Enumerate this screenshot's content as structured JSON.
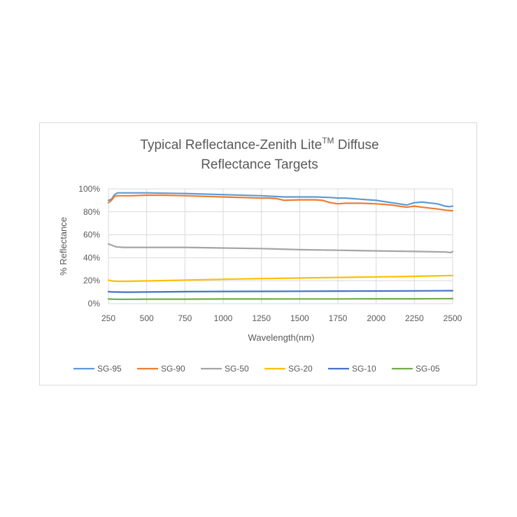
{
  "chart_data": {
    "type": "line",
    "title_line1": "Typical Reflectance-Zenith Lite",
    "title_sup": "TM",
    "title_line1_end": " Diffuse",
    "title_line2": "Reflectance Targets",
    "xlabel": "Wavelength(nm)",
    "ylabel": "% Reflectance",
    "xlim": [
      250,
      2500
    ],
    "ylim": [
      0,
      100
    ],
    "x_ticks": [
      250,
      500,
      750,
      1000,
      1250,
      1500,
      1750,
      2000,
      2250,
      2500
    ],
    "x_tick_labels": [
      "250",
      "500",
      "750",
      "1000",
      "1250",
      "1500",
      "1750",
      "2000",
      "2250",
      "2500"
    ],
    "y_ticks": [
      0,
      20,
      40,
      60,
      80,
      100
    ],
    "y_tick_labels": [
      "0%",
      "20%",
      "40%",
      "60%",
      "80%",
      "100%"
    ],
    "grid": true,
    "legend_position": "bottom",
    "series": [
      {
        "name": "SG-95",
        "color": "#5b9bd5",
        "x": [
          250,
          270,
          290,
          310,
          350,
          400,
          500,
          750,
          1000,
          1250,
          1400,
          1500,
          1600,
          1700,
          1750,
          1800,
          1900,
          2000,
          2100,
          2150,
          2200,
          2250,
          2300,
          2400,
          2450,
          2480,
          2500
        ],
        "y": [
          90,
          91,
          95,
          96.5,
          96.5,
          96.5,
          96.5,
          96,
          95,
          94,
          93,
          93,
          93,
          92.5,
          92,
          92,
          91,
          90,
          88,
          87,
          86,
          88,
          88.5,
          87,
          85,
          84.5,
          85
        ]
      },
      {
        "name": "SG-90",
        "color": "#ed7d31",
        "x": [
          250,
          270,
          290,
          310,
          350,
          400,
          500,
          600,
          750,
          1000,
          1250,
          1300,
          1350,
          1400,
          1500,
          1600,
          1650,
          1700,
          1750,
          1800,
          1900,
          2000,
          2100,
          2150,
          2200,
          2250,
          2300,
          2400,
          2450,
          2500
        ],
        "y": [
          88,
          90,
          93.5,
          94,
          94,
          94,
          94.5,
          94.5,
          94,
          93,
          92,
          92,
          91.5,
          90,
          90.5,
          90.5,
          90,
          88,
          87,
          87.5,
          87.5,
          87,
          86,
          85,
          84,
          85,
          84,
          82.5,
          81.5,
          81
        ]
      },
      {
        "name": "SG-50",
        "color": "#a5a5a5",
        "x": [
          250,
          270,
          300,
          350,
          400,
          500,
          750,
          1000,
          1250,
          1500,
          1750,
          2000,
          2250,
          2450,
          2490,
          2500
        ],
        "y": [
          52,
          51,
          49.5,
          49,
          49,
          49,
          49,
          48.5,
          48,
          47,
          46.5,
          46,
          45.5,
          45,
          44.5,
          45.5
        ]
      },
      {
        "name": "SG-20",
        "color": "#ffc000",
        "x": [
          250,
          270,
          300,
          350,
          400,
          500,
          750,
          1000,
          1250,
          1500,
          1750,
          2000,
          2250,
          2500
        ],
        "y": [
          20.5,
          19.8,
          19.5,
          19.4,
          19.5,
          19.8,
          20.5,
          21.2,
          21.8,
          22.3,
          22.8,
          23.3,
          23.8,
          24.5
        ]
      },
      {
        "name": "SG-10",
        "color": "#4472c4",
        "x": [
          250,
          270,
          300,
          350,
          400,
          500,
          750,
          1000,
          1250,
          1500,
          1750,
          2000,
          2250,
          2500
        ],
        "y": [
          10.5,
          10.2,
          10.1,
          10,
          10,
          10.1,
          10.4,
          10.6,
          10.7,
          10.8,
          10.9,
          11,
          11.1,
          11.3
        ]
      },
      {
        "name": "SG-05",
        "color": "#70ad47",
        "x": [
          250,
          300,
          400,
          500,
          750,
          1000,
          1250,
          1500,
          1750,
          2000,
          2250,
          2500
        ],
        "y": [
          4,
          3.8,
          3.8,
          3.9,
          3.9,
          4,
          4,
          4.1,
          4.1,
          4.2,
          4.2,
          4.3
        ]
      }
    ]
  }
}
